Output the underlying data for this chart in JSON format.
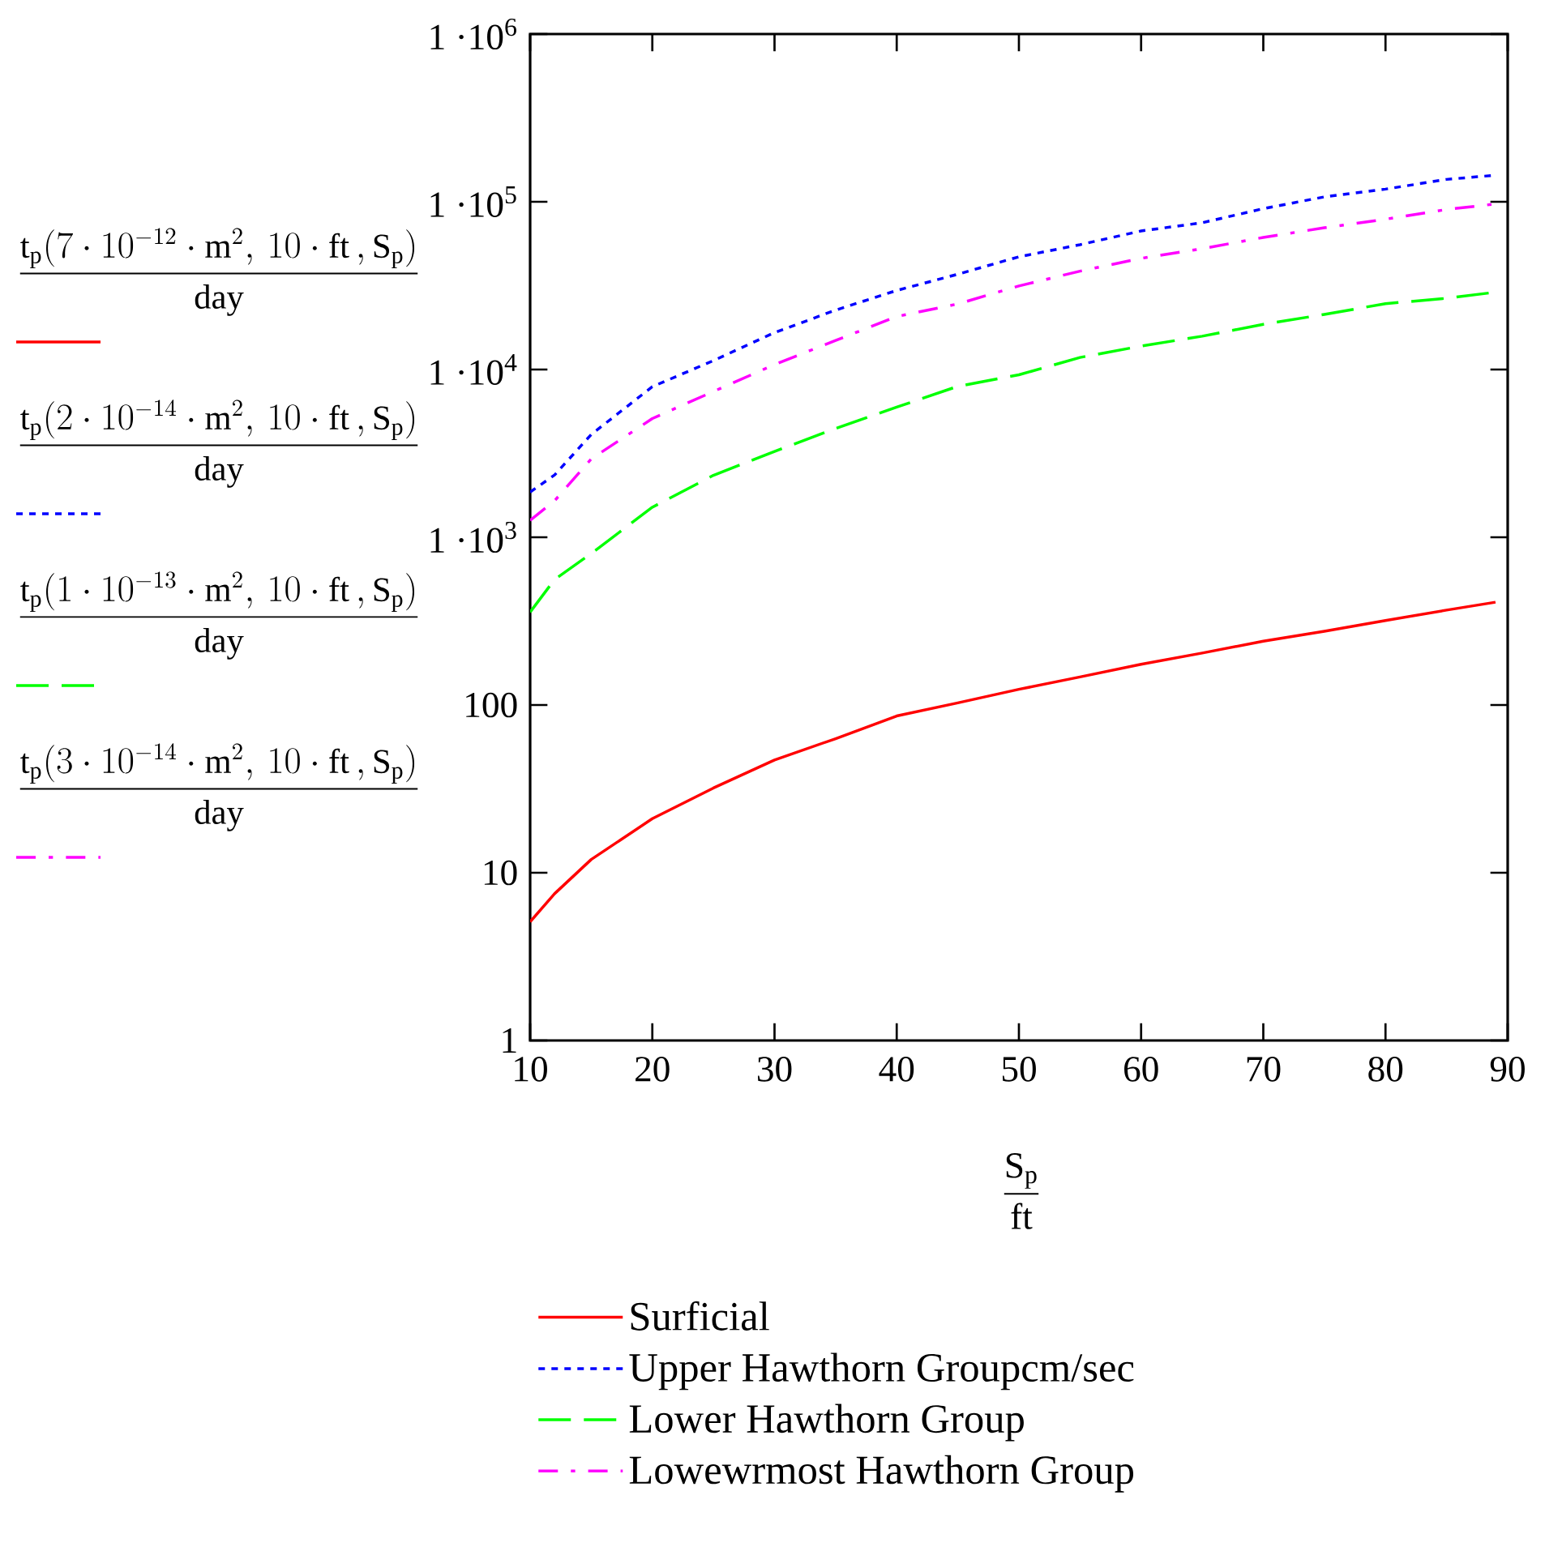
{
  "chart_data": {
    "type": "line",
    "xlabel": "\\dfrac{\\mathrm{S_p}}{\\mathrm{ft}}",
    "ylabel": [
      "\\dfrac{\\mathrm{t_p}\\!\\left(7\\cdot 10^{-12}\\cdot\\mathrm{m}^{2},\\, 10\\cdot\\mathrm{ft}\\,,\\mathrm{S_p}\\right)}{\\mathrm{day}}",
      "\\dfrac{\\mathrm{t_p}\\!\\left(2\\cdot 10^{-14}\\cdot\\mathrm{m}^{2},\\, 10\\cdot\\mathrm{ft}\\,,\\mathrm{S_p}\\right)}{\\mathrm{day}}",
      "\\dfrac{\\mathrm{t_p}\\!\\left(1\\cdot 10^{-13}\\cdot\\mathrm{m}^{2},\\, 10\\cdot\\mathrm{ft}\\,,\\mathrm{S_p}\\right)}{\\mathrm{day}}",
      "\\dfrac{\\mathrm{t_p}\\!\\left(3\\cdot 10^{-14}\\cdot\\mathrm{m}^{2},\\, 10\\cdot\\mathrm{ft}\\,,\\mathrm{S_p}\\right)}{\\mathrm{day}}"
    ],
    "x": [
      10,
      12,
      15,
      20,
      25,
      30,
      35,
      40,
      45,
      50,
      55,
      60,
      65,
      70,
      75,
      80,
      85,
      89
    ],
    "log": "y",
    "grid": false,
    "legend": "bottom",
    "marker": "none",
    "xlim": [
      10,
      90
    ],
    "xticks": [
      10,
      20,
      30,
      40,
      50,
      60,
      70,
      80,
      90
    ],
    "ylim": [
      1,
      1000000
    ],
    "yticks": [
      1,
      10,
      100,
      {
        "value": 1000,
        "label": "1 ·10$^{3}$"
      },
      {
        "value": 10000,
        "label": "1 ·10$^{4}$"
      },
      {
        "value": 100000,
        "label": "1 ·10$^{5}$"
      },
      {
        "value": 1000000,
        "label": "1 ·10$^{6}$"
      }
    ],
    "series": [
      {
        "name": "Surficial",
        "color": "#ff0000",
        "line_style": "solid",
        "values": [
          5.1,
          7.5,
          12,
          21,
          32,
          47,
          63,
          86,
          103,
          124,
          147,
          175,
          204,
          240,
          275,
          319,
          368,
          410
        ]
      },
      {
        "name": "Upper Hawthorn Groupcm/sec",
        "color": "#0000ff",
        "line_style": "dotted",
        "values": [
          1860,
          2350,
          4100,
          7900,
          11300,
          16600,
          22600,
          29600,
          37000,
          47000,
          55500,
          67000,
          75000,
          91000,
          107000,
          119000,
          136000,
          144000
        ]
      },
      {
        "name": "Lower Hawthorn Group",
        "color": "#00ff00",
        "line_style": "dashed",
        "values": [
          358,
          560,
          800,
          1510,
          2340,
          3250,
          4450,
          5970,
          7940,
          9300,
          11800,
          13800,
          15800,
          18600,
          21300,
          24700,
          26600,
          28900
        ]
      },
      {
        "name": "Lowewrmost Hawthorn Group",
        "color": "#ff00ff",
        "line_style": "dashdot",
        "values": [
          1260,
          1650,
          2930,
          5100,
          7400,
          10700,
          14900,
          20700,
          24600,
          31500,
          38600,
          46000,
          52500,
          61300,
          70000,
          78700,
          90000,
          97000
        ]
      }
    ]
  }
}
